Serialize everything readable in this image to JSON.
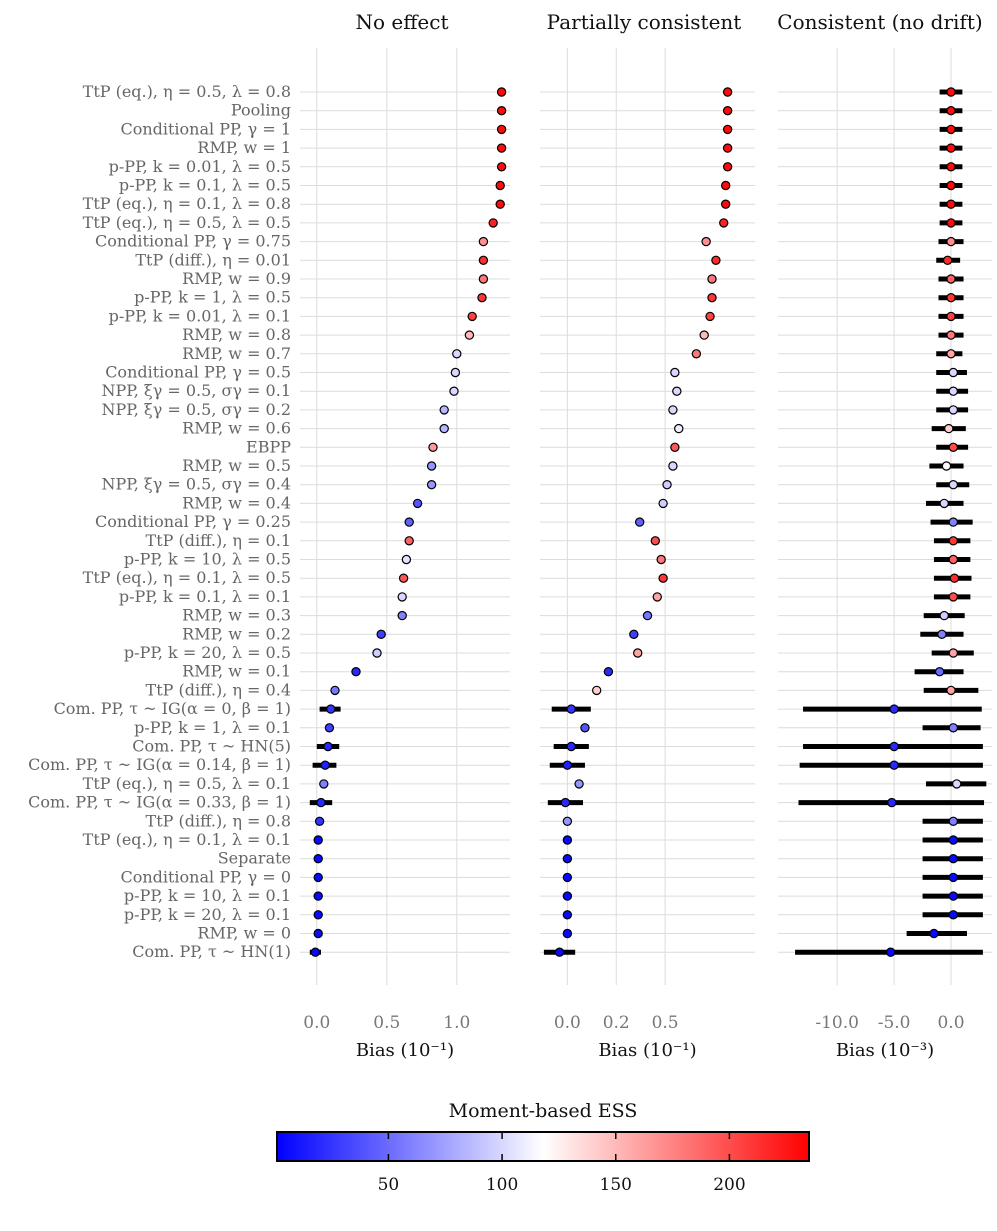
{
  "chart_data": {
    "type": "scatter",
    "subtype": "forest-plot (point estimate with interval), three panels, shared row labels",
    "rows": [
      "TtP (eq.), η = 0.5, λ = 0.8",
      "Pooling",
      "Conditional PP, γ = 1",
      "RMP, w = 1",
      "p-PP, k = 0.01, λ = 0.5",
      "p-PP, k = 0.1, λ = 0.5",
      "TtP (eq.), η = 0.1, λ = 0.8",
      "TtP (eq.), η = 0.5, λ = 0.5",
      "Conditional PP, γ = 0.75",
      "TtP (diff.), η = 0.01",
      "RMP, w = 0.9",
      "p-PP, k = 1, λ = 0.5",
      "p-PP, k = 0.01, λ = 0.1",
      "RMP, w = 0.8",
      "RMP, w = 0.7",
      "Conditional PP, γ = 0.5",
      "NPP, ξγ = 0.5, σγ = 0.1",
      "NPP, ξγ = 0.5, σγ = 0.2",
      "RMP, w = 0.6",
      "EBPP",
      "RMP, w = 0.5",
      "NPP, ξγ = 0.5, σγ = 0.4",
      "RMP, w = 0.4",
      "Conditional PP, γ = 0.25",
      "TtP (diff.), η = 0.1",
      "p-PP, k = 10, λ = 0.5",
      "TtP (eq.), η = 0.1, λ = 0.5",
      "p-PP, k = 0.1, λ = 0.1",
      "RMP, w = 0.3",
      "RMP, w = 0.2",
      "p-PP, k = 20, λ = 0.5",
      "RMP, w = 0.1",
      "TtP (diff.), η = 0.4",
      "Com. PP, τ ~ IG(α = 0, β = 1)",
      "p-PP, k = 1, λ = 0.1",
      "Com. PP, τ ~ HN(5)",
      "Com. PP, τ ~ IG(α = 0.14, β = 1)",
      "TtP (eq.), η = 0.5, λ = 0.1",
      "Com. PP, τ ~ IG(α = 0.33, β = 1)",
      "TtP (diff.), η = 0.8",
      "TtP (eq.), η = 0.1, λ = 0.1",
      "Separate",
      "Conditional PP, γ = 0",
      "p-PP, k = 10, λ = 0.1",
      "p-PP, k = 20, λ = 0.1",
      "RMP, w = 0",
      "Com. PP, τ ~ HN(1)"
    ],
    "panels": [
      {
        "title": "No effect",
        "xlabel": "Bias (10⁻¹)",
        "xlim": [
          -0.12,
          1.38
        ],
        "xticks": [
          0,
          0.5,
          1
        ],
        "xticklabels": [
          "0.0",
          "0.5",
          "1.0"
        ],
        "estimates": [
          1.32,
          1.32,
          1.32,
          1.32,
          1.32,
          1.31,
          1.31,
          1.26,
          1.19,
          1.19,
          1.19,
          1.18,
          1.11,
          1.09,
          1.0,
          0.99,
          0.98,
          0.91,
          0.91,
          0.83,
          0.82,
          0.82,
          0.72,
          0.66,
          0.66,
          0.64,
          0.62,
          0.61,
          0.61,
          0.46,
          0.43,
          0.28,
          0.13,
          0.1,
          0.09,
          0.08,
          0.06,
          0.05,
          0.03,
          0.02,
          0.01,
          0.01,
          0.01,
          0.01,
          0.01,
          0.01,
          -0.01
        ],
        "lower": [
          1.31,
          1.31,
          1.31,
          1.31,
          1.31,
          1.3,
          1.3,
          1.25,
          1.18,
          1.18,
          1.18,
          1.17,
          1.1,
          1.08,
          0.99,
          0.98,
          0.97,
          0.9,
          0.9,
          0.82,
          0.81,
          0.81,
          0.71,
          0.65,
          0.65,
          0.63,
          0.61,
          0.6,
          0.6,
          0.45,
          0.42,
          0.27,
          0.12,
          0.02,
          0.08,
          0.0,
          -0.03,
          0.04,
          -0.05,
          0.01,
          0.0,
          0.0,
          0.0,
          0.0,
          0.0,
          0.0,
          -0.05
        ],
        "upper": [
          1.33,
          1.33,
          1.33,
          1.33,
          1.33,
          1.32,
          1.32,
          1.27,
          1.2,
          1.2,
          1.2,
          1.19,
          1.12,
          1.1,
          1.01,
          1.0,
          0.99,
          0.92,
          0.92,
          0.84,
          0.83,
          0.83,
          0.73,
          0.67,
          0.67,
          0.65,
          0.63,
          0.62,
          0.62,
          0.47,
          0.44,
          0.29,
          0.14,
          0.17,
          0.1,
          0.16,
          0.14,
          0.06,
          0.11,
          0.03,
          0.02,
          0.02,
          0.02,
          0.02,
          0.02,
          0.02,
          0.03
        ],
        "ess": [
          230,
          230,
          230,
          230,
          230,
          230,
          230,
          220,
          170,
          215,
          180,
          210,
          205,
          150,
          100,
          100,
          100,
          85,
          85,
          165,
          70,
          70,
          40,
          45,
          190,
          105,
          195,
          100,
          60,
          30,
          95,
          20,
          55,
          25,
          30,
          20,
          15,
          60,
          20,
          25,
          5,
          5,
          5,
          5,
          5,
          5,
          5
        ]
      },
      {
        "title": "Partially consistent",
        "xlabel": "Bias (10⁻¹)",
        "xlim": [
          -0.14,
          0.96
        ],
        "xticks": [
          0,
          0.25,
          0.5
        ],
        "xticklabels": [
          "0.0",
          "0.2",
          "0.5"
        ],
        "estimates": [
          0.82,
          0.82,
          0.82,
          0.82,
          0.82,
          0.81,
          0.81,
          0.8,
          0.71,
          0.76,
          0.74,
          0.74,
          0.73,
          0.7,
          0.66,
          0.55,
          0.56,
          0.54,
          0.57,
          0.55,
          0.54,
          0.51,
          0.49,
          0.37,
          0.45,
          0.48,
          0.49,
          0.46,
          0.41,
          0.34,
          0.36,
          0.21,
          0.15,
          0.02,
          0.09,
          0.02,
          0.0,
          0.06,
          -0.01,
          0.0,
          0.0,
          0.0,
          0.0,
          0.0,
          0.0,
          0.0,
          -0.04
        ],
        "lower": [
          0.81,
          0.81,
          0.81,
          0.81,
          0.81,
          0.8,
          0.8,
          0.79,
          0.7,
          0.75,
          0.73,
          0.73,
          0.72,
          0.69,
          0.65,
          0.54,
          0.55,
          0.53,
          0.56,
          0.54,
          0.53,
          0.5,
          0.48,
          0.36,
          0.43,
          0.46,
          0.47,
          0.44,
          0.4,
          0.33,
          0.34,
          0.2,
          0.13,
          -0.08,
          0.07,
          -0.07,
          -0.09,
          0.04,
          -0.1,
          -0.01,
          -0.01,
          -0.01,
          -0.01,
          -0.01,
          -0.01,
          -0.01,
          -0.12
        ],
        "upper": [
          0.83,
          0.83,
          0.83,
          0.83,
          0.83,
          0.82,
          0.82,
          0.81,
          0.72,
          0.77,
          0.75,
          0.75,
          0.74,
          0.71,
          0.67,
          0.56,
          0.57,
          0.55,
          0.58,
          0.56,
          0.55,
          0.52,
          0.5,
          0.38,
          0.47,
          0.5,
          0.51,
          0.48,
          0.42,
          0.35,
          0.38,
          0.22,
          0.17,
          0.12,
          0.11,
          0.11,
          0.09,
          0.08,
          0.08,
          0.01,
          0.01,
          0.01,
          0.01,
          0.01,
          0.01,
          0.01,
          0.04
        ],
        "ess": [
          230,
          230,
          230,
          230,
          230,
          230,
          230,
          220,
          170,
          215,
          180,
          210,
          205,
          150,
          180,
          100,
          100,
          100,
          110,
          195,
          100,
          95,
          95,
          45,
          200,
          180,
          210,
          160,
          55,
          30,
          160,
          20,
          140,
          25,
          40,
          20,
          15,
          70,
          20,
          70,
          5,
          5,
          5,
          5,
          5,
          5,
          5
        ]
      },
      {
        "title": "Consistent (no drift)",
        "xlabel": "Bias (10⁻³)",
        "xlim": [
          -15.2,
          3.6
        ],
        "xticks": [
          -10,
          -5,
          0
        ],
        "xticklabels": [
          "-10.0",
          "-5.0",
          "0.0"
        ],
        "estimates": [
          0.0,
          0.0,
          0.0,
          0.0,
          0.0,
          0.0,
          0.0,
          0.0,
          0.0,
          -0.3,
          0.0,
          0.0,
          0.0,
          0.0,
          0.0,
          0.2,
          0.2,
          0.2,
          -0.2,
          0.2,
          -0.4,
          0.2,
          -0.6,
          0.2,
          0.2,
          0.2,
          0.3,
          0.2,
          -0.6,
          -0.8,
          0.2,
          -1.0,
          0.0,
          -5.0,
          0.2,
          -5.0,
          -5.0,
          0.5,
          -5.2,
          0.2,
          0.2,
          0.2,
          0.2,
          0.2,
          0.2,
          -1.5,
          -5.3
        ],
        "lower": [
          -1.0,
          -1.0,
          -1.0,
          -1.0,
          -1.0,
          -1.0,
          -1.0,
          -1.0,
          -1.1,
          -1.3,
          -1.1,
          -1.1,
          -1.1,
          -1.1,
          -1.3,
          -1.3,
          -1.3,
          -1.3,
          -1.7,
          -1.3,
          -1.9,
          -1.3,
          -2.2,
          -1.8,
          -1.5,
          -1.5,
          -1.5,
          -1.5,
          -2.4,
          -2.7,
          -1.7,
          -3.2,
          -2.4,
          -13.0,
          -2.5,
          -13.0,
          -13.3,
          -2.2,
          -13.4,
          -2.5,
          -2.5,
          -2.5,
          -2.5,
          -2.5,
          -2.5,
          -3.9,
          -13.7
        ],
        "upper": [
          1.0,
          1.0,
          1.0,
          1.0,
          1.0,
          1.0,
          1.0,
          1.0,
          1.1,
          0.8,
          1.1,
          1.1,
          1.1,
          1.1,
          1.0,
          1.4,
          1.5,
          1.5,
          1.3,
          1.5,
          1.1,
          1.6,
          1.1,
          1.9,
          1.7,
          1.7,
          1.8,
          1.7,
          1.2,
          1.1,
          2.0,
          1.1,
          2.4,
          2.7,
          2.6,
          2.8,
          2.8,
          3.1,
          2.9,
          2.8,
          2.8,
          2.8,
          2.8,
          2.8,
          2.8,
          1.4,
          2.8
        ],
        "ess": [
          230,
          230,
          230,
          230,
          230,
          230,
          230,
          230,
          170,
          215,
          190,
          210,
          205,
          180,
          160,
          100,
          100,
          100,
          140,
          200,
          120,
          100,
          100,
          60,
          210,
          190,
          215,
          200,
          95,
          60,
          160,
          50,
          160,
          20,
          60,
          20,
          20,
          100,
          20,
          60,
          5,
          5,
          5,
          5,
          5,
          5,
          5
        ]
      }
    ],
    "colorbar": {
      "title": "Moment-based ESS",
      "ticks": [
        50,
        100,
        150,
        200
      ],
      "range": [
        1,
        235
      ],
      "colormap": [
        "#0000ff",
        "#ffffff",
        "#ff0000"
      ]
    }
  }
}
